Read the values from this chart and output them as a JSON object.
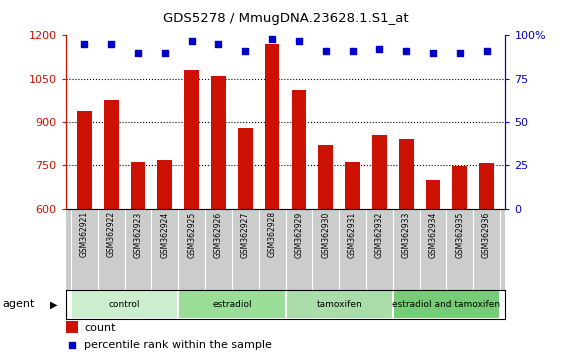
{
  "title": "GDS5278 / MmugDNA.23628.1.S1_at",
  "samples": [
    "GSM362921",
    "GSM362922",
    "GSM362923",
    "GSM362924",
    "GSM362925",
    "GSM362926",
    "GSM362927",
    "GSM362928",
    "GSM362929",
    "GSM362930",
    "GSM362931",
    "GSM362932",
    "GSM362933",
    "GSM362934",
    "GSM362935",
    "GSM362936"
  ],
  "counts": [
    940,
    975,
    762,
    768,
    1080,
    1058,
    878,
    1170,
    1010,
    820,
    762,
    855,
    840,
    700,
    748,
    760
  ],
  "percentile_ranks": [
    95,
    95,
    90,
    90,
    97,
    95,
    91,
    98,
    97,
    91,
    91,
    92,
    91,
    90,
    90,
    91
  ],
  "groups": [
    {
      "label": "control",
      "start": 0,
      "end": 4,
      "color": "#cceecc"
    },
    {
      "label": "estradiol",
      "start": 4,
      "end": 8,
      "color": "#99dd99"
    },
    {
      "label": "tamoxifen",
      "start": 8,
      "end": 12,
      "color": "#aaddaa"
    },
    {
      "label": "estradiol and tamoxifen",
      "start": 12,
      "end": 16,
      "color": "#77cc77"
    }
  ],
  "ylim_left": [
    600,
    1200
  ],
  "ylim_right": [
    0,
    100
  ],
  "yticks_left": [
    600,
    750,
    900,
    1050,
    1200
  ],
  "yticks_right": [
    0,
    25,
    50,
    75,
    100
  ],
  "bar_color": "#cc1100",
  "dot_color": "#0000cc",
  "background_color": "#ffffff",
  "label_bg_color": "#cccccc",
  "group_border_color": "#000000",
  "axis_left_color": "#cc1100",
  "axis_right_color": "#0000cc"
}
